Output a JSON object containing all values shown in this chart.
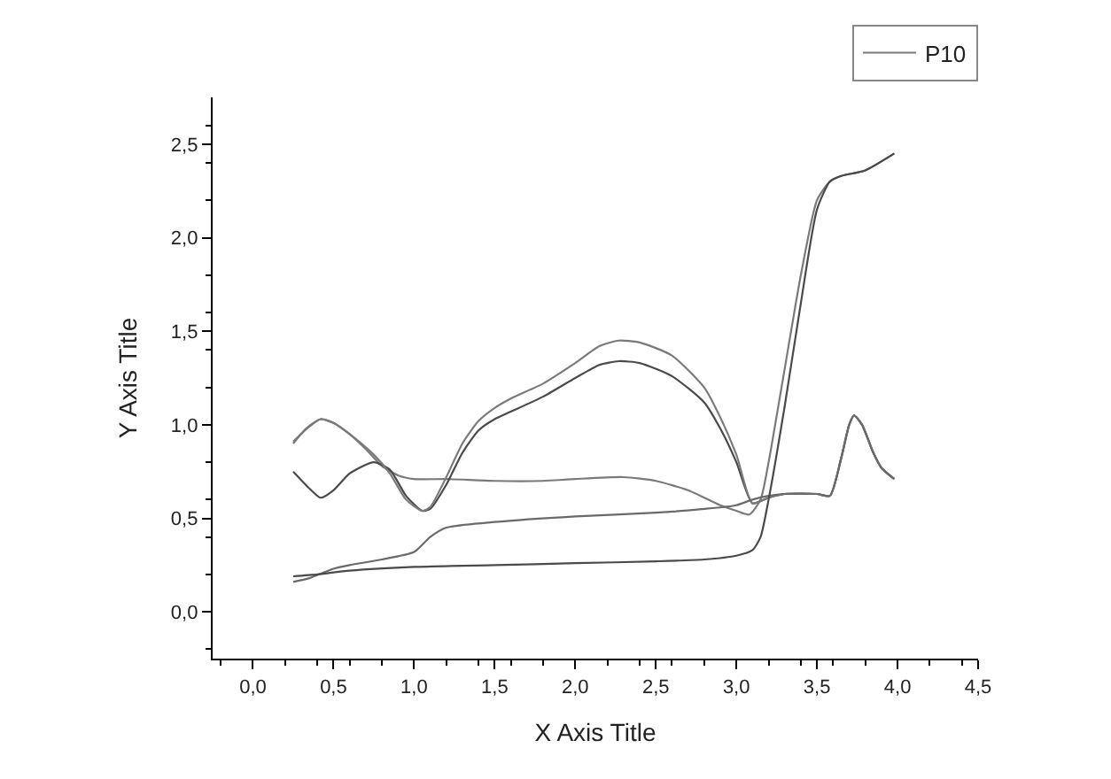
{
  "chart_data": {
    "type": "line",
    "xlabel": "X Axis Title",
    "ylabel": "Y Axis Title",
    "xlim": [
      -0.25,
      4.5
    ],
    "ylim": [
      -0.25,
      2.75
    ],
    "xticks": [
      {
        "value": 0,
        "label": "0,0"
      },
      {
        "value": 0.5,
        "label": "0,5"
      },
      {
        "value": 1,
        "label": "1,0"
      },
      {
        "value": 1.5,
        "label": "1,5"
      },
      {
        "value": 2,
        "label": "2,0"
      },
      {
        "value": 2.5,
        "label": "2,5"
      },
      {
        "value": 3,
        "label": "3,0"
      },
      {
        "value": 3.5,
        "label": "3,5"
      },
      {
        "value": 4,
        "label": "4,0"
      },
      {
        "value": 4.5,
        "label": "4,5"
      }
    ],
    "yticks": [
      {
        "value": 0,
        "label": "0,0"
      },
      {
        "value": 0.5,
        "label": "0,5"
      },
      {
        "value": 1,
        "label": "1,0"
      },
      {
        "value": 1.5,
        "label": "1,5"
      },
      {
        "value": 2,
        "label": "2,0"
      },
      {
        "value": 2.5,
        "label": "2,5"
      }
    ],
    "legend": "top right",
    "marker": "none",
    "line_style": "solid",
    "series": [
      {
        "name": "P10",
        "color": "#7a7a7a",
        "x": [
          0.25,
          0.33,
          0.42,
          0.5,
          0.6,
          0.7,
          0.8,
          0.9,
          1.0,
          1.2,
          1.5,
          1.8,
          2.0,
          2.3,
          2.5,
          2.7,
          2.9,
          3.0,
          3.08,
          3.15,
          3.2,
          3.3,
          3.4,
          3.5,
          3.58,
          3.65,
          3.8,
          3.98
        ],
        "values": [
          0.9,
          0.98,
          1.03,
          1.01,
          0.95,
          0.87,
          0.78,
          0.73,
          0.71,
          0.71,
          0.7,
          0.7,
          0.71,
          0.72,
          0.7,
          0.65,
          0.57,
          0.54,
          0.52,
          0.6,
          0.8,
          1.3,
          1.8,
          2.2,
          2.3,
          2.33,
          2.36,
          2.45
        ]
      },
      {
        "color": "#4a4a4a",
        "x": [
          0.25,
          0.35,
          0.42,
          0.5,
          0.6,
          0.75,
          0.85,
          0.95,
          1.05,
          1.1,
          1.2,
          1.3,
          1.4,
          1.5,
          1.6,
          1.8,
          2.0,
          2.15,
          2.27,
          2.4,
          2.6,
          2.8,
          2.9,
          3.0,
          3.1,
          3.2,
          3.3,
          3.5,
          3.58,
          3.65,
          3.7,
          3.73,
          3.78,
          3.85,
          3.9,
          3.98
        ],
        "values": [
          0.75,
          0.66,
          0.61,
          0.65,
          0.74,
          0.8,
          0.76,
          0.62,
          0.54,
          0.55,
          0.68,
          0.85,
          0.97,
          1.03,
          1.07,
          1.15,
          1.25,
          1.32,
          1.34,
          1.33,
          1.26,
          1.12,
          0.98,
          0.8,
          0.58,
          0.61,
          0.63,
          0.63,
          0.62,
          0.82,
          1.0,
          1.05,
          1.0,
          0.85,
          0.77,
          0.71
        ]
      },
      {
        "color": "#7a7a7a",
        "x": [
          0.25,
          0.35,
          0.42,
          0.5,
          0.6,
          0.75,
          0.85,
          0.95,
          1.05,
          1.1,
          1.2,
          1.3,
          1.4,
          1.5,
          1.6,
          1.8,
          2.0,
          2.15,
          2.27,
          2.4,
          2.6,
          2.8,
          2.9,
          3.0,
          3.1,
          3.2,
          3.3,
          3.5,
          3.58,
          3.65,
          3.7,
          3.73,
          3.78,
          3.85,
          3.9,
          3.98
        ],
        "values": [
          0.91,
          0.99,
          1.03,
          1.01,
          0.95,
          0.84,
          0.74,
          0.6,
          0.54,
          0.56,
          0.72,
          0.9,
          1.02,
          1.09,
          1.14,
          1.22,
          1.33,
          1.42,
          1.45,
          1.44,
          1.37,
          1.2,
          1.04,
          0.84,
          0.58,
          0.61,
          0.63,
          0.63,
          0.62,
          0.82,
          1.0,
          1.05,
          1.0,
          0.85,
          0.77,
          0.71
        ]
      },
      {
        "color": "#6a6a6a",
        "x": [
          0.25,
          0.35,
          0.5,
          0.6,
          0.8,
          1.0,
          1.1,
          1.2,
          1.5,
          2.0,
          2.5,
          2.8,
          3.0,
          3.1,
          3.2,
          3.3,
          3.5,
          3.58,
          3.65,
          3.7,
          3.73,
          3.78,
          3.85,
          3.9,
          3.98
        ],
        "values": [
          0.16,
          0.18,
          0.23,
          0.25,
          0.28,
          0.32,
          0.4,
          0.45,
          0.48,
          0.51,
          0.53,
          0.55,
          0.57,
          0.6,
          0.62,
          0.63,
          0.63,
          0.62,
          0.82,
          1.0,
          1.05,
          1.0,
          0.85,
          0.77,
          0.71
        ]
      },
      {
        "color": "#4a4a4a",
        "x": [
          0.25,
          0.4,
          0.6,
          1.0,
          1.5,
          2.0,
          2.5,
          2.8,
          3.0,
          3.1,
          3.15,
          3.2,
          3.3,
          3.4,
          3.5,
          3.58,
          3.65,
          3.8,
          3.98
        ],
        "values": [
          0.19,
          0.2,
          0.22,
          0.24,
          0.25,
          0.26,
          0.27,
          0.28,
          0.3,
          0.33,
          0.4,
          0.6,
          1.1,
          1.65,
          2.15,
          2.3,
          2.33,
          2.36,
          2.45
        ]
      }
    ]
  }
}
